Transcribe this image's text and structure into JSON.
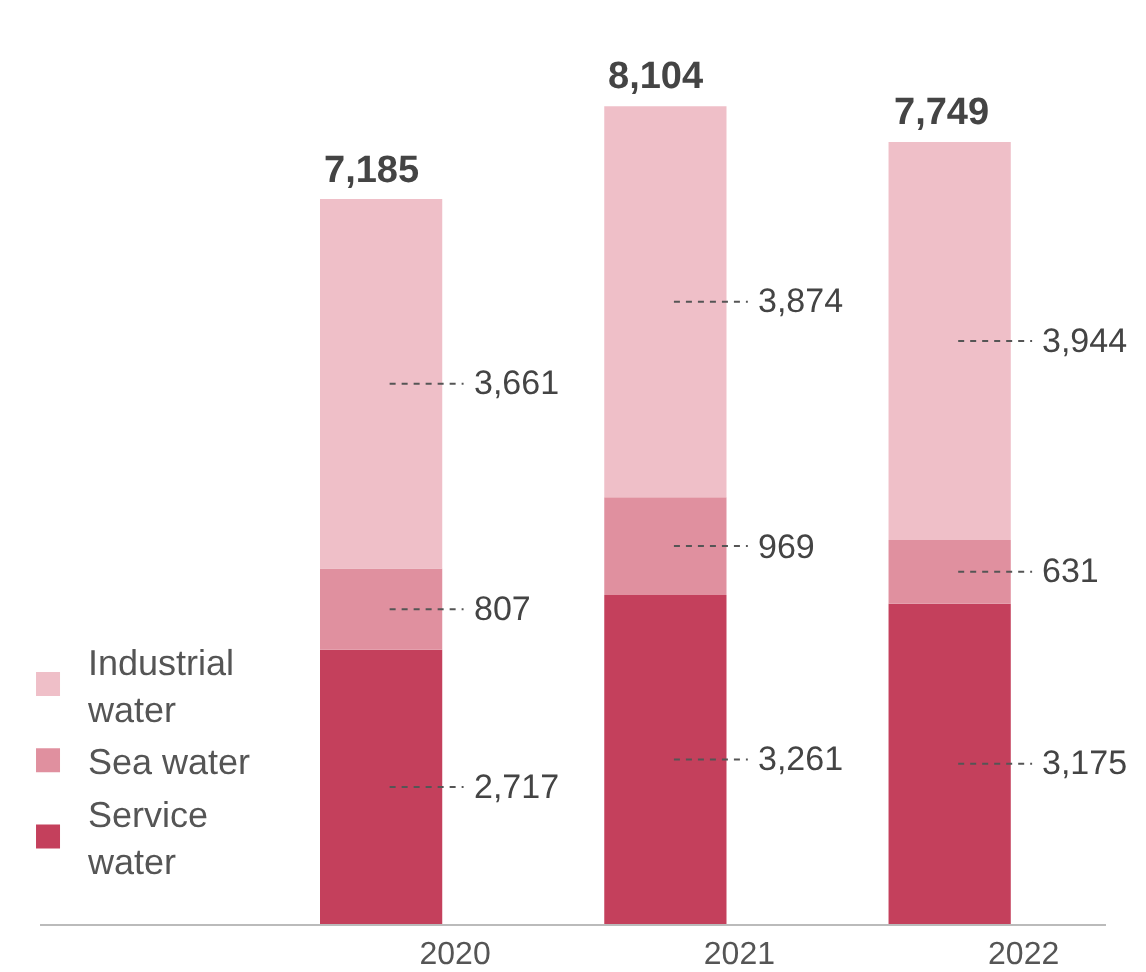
{
  "chart_data": {
    "type": "bar",
    "stacked": true,
    "categories": [
      "2020",
      "2021",
      "2022"
    ],
    "series": [
      {
        "name": "Service water",
        "color": "#c4405c",
        "values": [
          2717,
          3261,
          3175
        ],
        "value_labels": [
          "2,717",
          "3,261",
          "3,175"
        ]
      },
      {
        "name": "Sea water",
        "color": "#e0909f",
        "values": [
          807,
          969,
          631
        ],
        "value_labels": [
          "807",
          "969",
          "631"
        ]
      },
      {
        "name": "Industrial water",
        "color": "#efbfc8",
        "values": [
          3661,
          3874,
          3944
        ],
        "value_labels": [
          "3,661",
          "3,874",
          "3,944"
        ]
      }
    ],
    "totals": [
      "7,185",
      "8,104",
      "7,749"
    ],
    "legend": "bottom left"
  }
}
